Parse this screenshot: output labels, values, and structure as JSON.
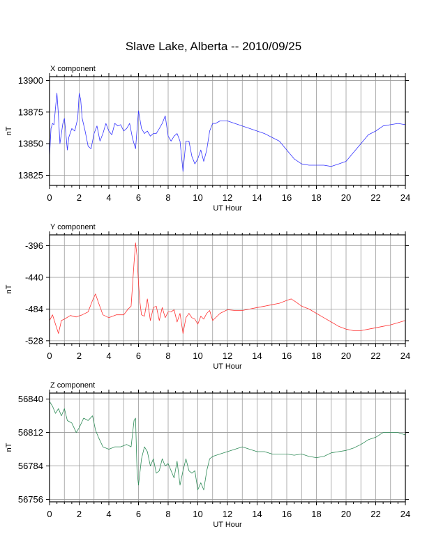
{
  "title": "Slave Lake, Alberta -- 2010/09/25",
  "chart_data": [
    {
      "type": "line",
      "panel_title": "X component",
      "xlabel": "UT Hour",
      "ylabel": "nT",
      "color": "#3333ff",
      "xlim": [
        0,
        24
      ],
      "ylim": [
        13817,
        13903
      ],
      "xticks": [
        "0",
        "2",
        "4",
        "6",
        "8",
        "10",
        "12",
        "14",
        "16",
        "18",
        "20",
        "22",
        "24"
      ],
      "yticks": [
        13825,
        13850,
        13875,
        13900
      ],
      "grid": true,
      "x": [
        0,
        0.1,
        0.2,
        0.3,
        0.4,
        0.5,
        0.6,
        0.7,
        0.8,
        0.9,
        1.0,
        1.1,
        1.2,
        1.3,
        1.5,
        1.7,
        1.9,
        2.0,
        2.1,
        2.2,
        2.4,
        2.6,
        2.8,
        3.0,
        3.2,
        3.4,
        3.6,
        3.8,
        4.0,
        4.2,
        4.4,
        4.6,
        4.8,
        5.0,
        5.2,
        5.4,
        5.6,
        5.8,
        6.0,
        6.2,
        6.4,
        6.6,
        6.8,
        7.0,
        7.2,
        7.4,
        7.6,
        7.8,
        8.0,
        8.2,
        8.4,
        8.6,
        8.8,
        9.0,
        9.2,
        9.4,
        9.6,
        9.8,
        10.0,
        10.2,
        10.4,
        10.6,
        10.8,
        11.0,
        11.2,
        11.5,
        12.0,
        12.5,
        13.0,
        13.5,
        14.0,
        14.5,
        15.0,
        15.5,
        16.0,
        16.5,
        17.0,
        17.5,
        18.0,
        18.5,
        19.0,
        19.5,
        20.0,
        20.5,
        21.0,
        21.5,
        22.0,
        22.5,
        23.0,
        23.5,
        24.0
      ],
      "y": [
        13840,
        13862,
        13866,
        13865,
        13878,
        13890,
        13872,
        13850,
        13858,
        13866,
        13870,
        13858,
        13845,
        13855,
        13862,
        13860,
        13870,
        13890,
        13885,
        13870,
        13860,
        13848,
        13846,
        13858,
        13864,
        13852,
        13858,
        13866,
        13860,
        13857,
        13866,
        13864,
        13865,
        13860,
        13862,
        13866,
        13854,
        13846,
        13876,
        13862,
        13858,
        13860,
        13856,
        13858,
        13858,
        13862,
        13866,
        13872,
        13856,
        13852,
        13856,
        13858,
        13852,
        13828,
        13852,
        13852,
        13840,
        13834,
        13838,
        13845,
        13836,
        13845,
        13860,
        13866,
        13866,
        13868,
        13868,
        13866,
        13864,
        13862,
        13860,
        13858,
        13855,
        13852,
        13845,
        13838,
        13834,
        13833,
        13833,
        13833,
        13832,
        13834,
        13836,
        13843,
        13850,
        13857,
        13860,
        13864,
        13865,
        13866,
        13865
      ]
    },
    {
      "type": "line",
      "panel_title": "Y component",
      "xlabel": "UT Hour",
      "ylabel": "nT",
      "color": "#ff3333",
      "xlim": [
        0,
        24
      ],
      "ylim": [
        -532,
        -381
      ],
      "xticks": [
        "0",
        "2",
        "4",
        "6",
        "8",
        "10",
        "12",
        "14",
        "16",
        "18",
        "20",
        "22",
        "24"
      ],
      "yticks": [
        -396,
        -440,
        -484,
        -528
      ],
      "grid": true,
      "x": [
        0,
        0.2,
        0.4,
        0.6,
        0.8,
        1.0,
        1.4,
        1.8,
        2.2,
        2.6,
        2.9,
        3.1,
        3.3,
        3.6,
        4.0,
        4.5,
        5.0,
        5.3,
        5.5,
        5.7,
        5.8,
        5.9,
        6.0,
        6.1,
        6.2,
        6.4,
        6.6,
        6.8,
        7.0,
        7.2,
        7.4,
        7.6,
        7.8,
        8.0,
        8.2,
        8.4,
        8.6,
        8.8,
        9.0,
        9.2,
        9.4,
        9.6,
        9.8,
        10.0,
        10.2,
        10.4,
        10.6,
        10.8,
        11.0,
        11.5,
        12.0,
        12.5,
        13.0,
        13.5,
        14.0,
        14.5,
        15.0,
        15.5,
        16.0,
        16.3,
        16.6,
        17.0,
        17.5,
        18.0,
        18.5,
        19.0,
        19.5,
        20.0,
        20.5,
        21.0,
        21.5,
        22.0,
        22.5,
        23.0,
        23.5,
        24.0
      ],
      "y": [
        -500,
        -492,
        -505,
        -518,
        -500,
        -498,
        -493,
        -495,
        -492,
        -488,
        -472,
        -463,
        -475,
        -492,
        -496,
        -492,
        -492,
        -484,
        -480,
        -420,
        -392,
        -410,
        -448,
        -475,
        -492,
        -494,
        -470,
        -500,
        -482,
        -480,
        -500,
        -482,
        -496,
        -488,
        -488,
        -485,
        -502,
        -490,
        -518,
        -496,
        -490,
        -496,
        -498,
        -505,
        -494,
        -498,
        -490,
        -486,
        -500,
        -490,
        -485,
        -486,
        -486,
        -484,
        -482,
        -480,
        -478,
        -476,
        -472,
        -470,
        -474,
        -480,
        -484,
        -490,
        -496,
        -502,
        -508,
        -512,
        -514,
        -514,
        -512,
        -510,
        -508,
        -506,
        -503,
        -500
      ]
    },
    {
      "type": "line",
      "panel_title": "Z component",
      "xlabel": "UT Hour",
      "ylabel": "nT",
      "color": "#2e8b57",
      "xlim": [
        0,
        24
      ],
      "ylim": [
        56754,
        56845
      ],
      "xticks": [
        "0",
        "2",
        "4",
        "6",
        "8",
        "10",
        "12",
        "14",
        "16",
        "18",
        "20",
        "22",
        "24"
      ],
      "yticks": [
        56840,
        56812,
        56784,
        56756
      ],
      "grid": true,
      "x": [
        0,
        0.2,
        0.4,
        0.6,
        0.8,
        1.0,
        1.2,
        1.5,
        1.8,
        2.0,
        2.3,
        2.6,
        2.9,
        3.1,
        3.3,
        3.6,
        4.0,
        4.4,
        4.8,
        5.2,
        5.5,
        5.7,
        5.8,
        5.9,
        6.0,
        6.2,
        6.4,
        6.6,
        6.8,
        7.0,
        7.2,
        7.4,
        7.6,
        7.8,
        8.0,
        8.2,
        8.4,
        8.6,
        8.8,
        9.0,
        9.2,
        9.4,
        9.6,
        9.8,
        10.0,
        10.2,
        10.4,
        10.6,
        10.8,
        11.0,
        11.5,
        12.0,
        12.5,
        13.0,
        13.5,
        14.0,
        14.5,
        15.0,
        15.5,
        16.0,
        16.5,
        17.0,
        17.5,
        18.0,
        18.5,
        19.0,
        19.5,
        20.0,
        20.5,
        21.0,
        21.5,
        22.0,
        22.5,
        23.0,
        23.5,
        24.0
      ],
      "y": [
        56838,
        56834,
        56828,
        56832,
        56826,
        56832,
        56822,
        56820,
        56812,
        56816,
        56824,
        56822,
        56826,
        56814,
        56808,
        56800,
        56798,
        56800,
        56800,
        56802,
        56800,
        56822,
        56824,
        56780,
        56768,
        56790,
        56800,
        56796,
        56784,
        56790,
        56778,
        56780,
        56790,
        56784,
        56786,
        56780,
        56774,
        56788,
        56768,
        56780,
        56790,
        56780,
        56778,
        56780,
        56764,
        56770,
        56764,
        56780,
        56790,
        56792,
        56794,
        56796,
        56798,
        56800,
        56798,
        56796,
        56796,
        56794,
        56794,
        56794,
        56793,
        56794,
        56792,
        56791,
        56792,
        56795,
        56796,
        56797,
        56799,
        56802,
        56806,
        56808,
        56812,
        56812,
        56812,
        56810
      ]
    }
  ]
}
